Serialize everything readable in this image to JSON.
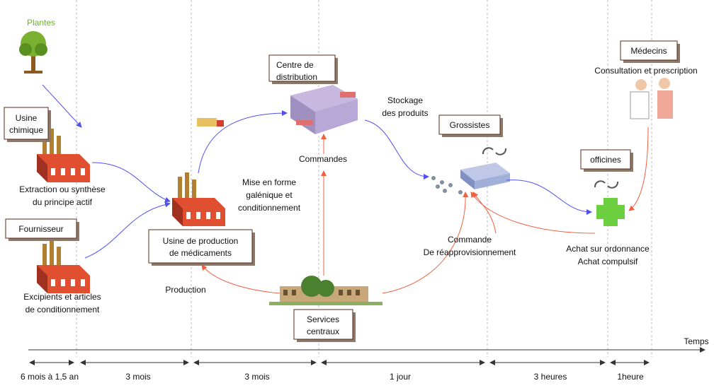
{
  "nodes": [
    {
      "lines": [
        "Usine",
        "chimique"
      ]
    },
    {
      "lines": [
        "Fournisseur"
      ]
    },
    {
      "lines": [
        "Usine de production",
        "de médicaments"
      ]
    },
    {
      "lines": [
        "Centre de",
        "distribution"
      ]
    },
    {
      "lines": [
        "Grossistes"
      ]
    },
    {
      "lines": [
        "officines"
      ]
    },
    {
      "lines": [
        "Médecins"
      ]
    },
    {
      "lines": [
        "Services",
        "centraux"
      ]
    }
  ],
  "captions": [
    {
      "lines": [
        "Plantes"
      ]
    },
    {
      "lines": [
        "Extraction ou synthèse",
        "du principe actif"
      ]
    },
    {
      "lines": [
        "Excipients et articles",
        "de conditionnement"
      ]
    },
    {
      "lines": [
        "Mise en forme",
        "galénique et",
        "conditionnement"
      ]
    },
    {
      "lines": [
        "Stockage",
        "des produits"
      ]
    },
    {
      "lines": [
        "Commandes"
      ]
    },
    {
      "lines": [
        "Commande",
        "De réapprovisionnement"
      ]
    },
    {
      "lines": [
        "Production"
      ]
    },
    {
      "lines": [
        "Consultation et prescription"
      ]
    },
    {
      "lines": [
        "Achat sur ordonnance",
        "Achat compulsif"
      ]
    }
  ],
  "timeline": {
    "axis_label": "Temps",
    "periods": [
      "6 mois à 1,5 an",
      "3 mois",
      "3 mois",
      "1 jour",
      "3 heures",
      "1heure"
    ]
  }
}
